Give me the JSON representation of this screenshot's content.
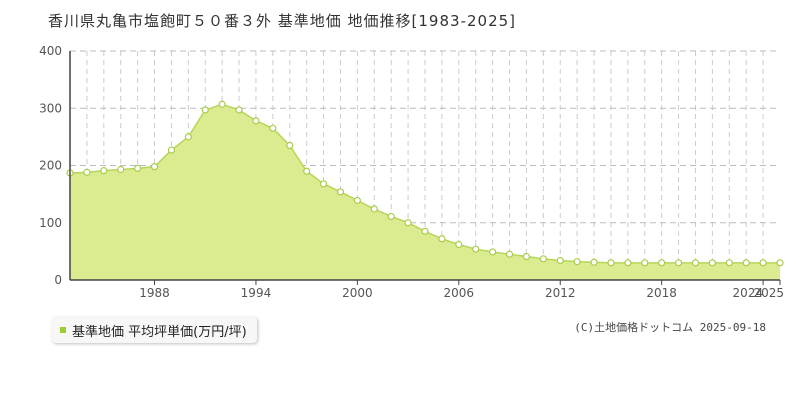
{
  "chart_data": {
    "type": "area",
    "title": "香川県丸亀市塩飽町５０番３外 基準地価 地価推移[1983-2025]",
    "xlabel": "",
    "ylabel": "",
    "xlim": [
      1983,
      2025
    ],
    "ylim": [
      0,
      400
    ],
    "yticks": [
      0,
      100,
      200,
      300,
      400
    ],
    "xticks": [
      1988,
      1994,
      2000,
      2006,
      2012,
      2018,
      2024,
      2025
    ],
    "grid": true,
    "legend_position": "bottom-left",
    "colors": {
      "fill": "#dbeb8f",
      "line": "#b5d65a",
      "marker_edge": "#a9cc4e",
      "legend": "#9acd32"
    },
    "series": [
      {
        "name": "基準地価 平均坪単価(万円/坪)",
        "x": [
          1983,
          1984,
          1985,
          1986,
          1987,
          1988,
          1989,
          1990,
          1991,
          1992,
          1993,
          1994,
          1995,
          1996,
          1997,
          1998,
          1999,
          2000,
          2001,
          2002,
          2003,
          2004,
          2005,
          2006,
          2007,
          2008,
          2009,
          2010,
          2011,
          2012,
          2013,
          2014,
          2015,
          2016,
          2017,
          2018,
          2019,
          2020,
          2021,
          2022,
          2023,
          2024,
          2025
        ],
        "values": [
          187,
          188,
          191,
          193,
          195,
          198,
          227,
          250,
          297,
          307,
          297,
          278,
          265,
          235,
          190,
          168,
          154,
          139,
          124,
          111,
          100,
          85,
          72,
          62,
          54,
          49,
          45,
          41,
          37,
          34,
          32,
          31,
          30,
          30,
          30,
          30,
          30,
          30,
          30,
          30,
          30,
          30,
          30
        ]
      }
    ]
  },
  "legend": {
    "label": "基準地価 平均坪単価(万円/坪)"
  },
  "copyright": "(C)土地価格ドットコム 2025-09-18"
}
